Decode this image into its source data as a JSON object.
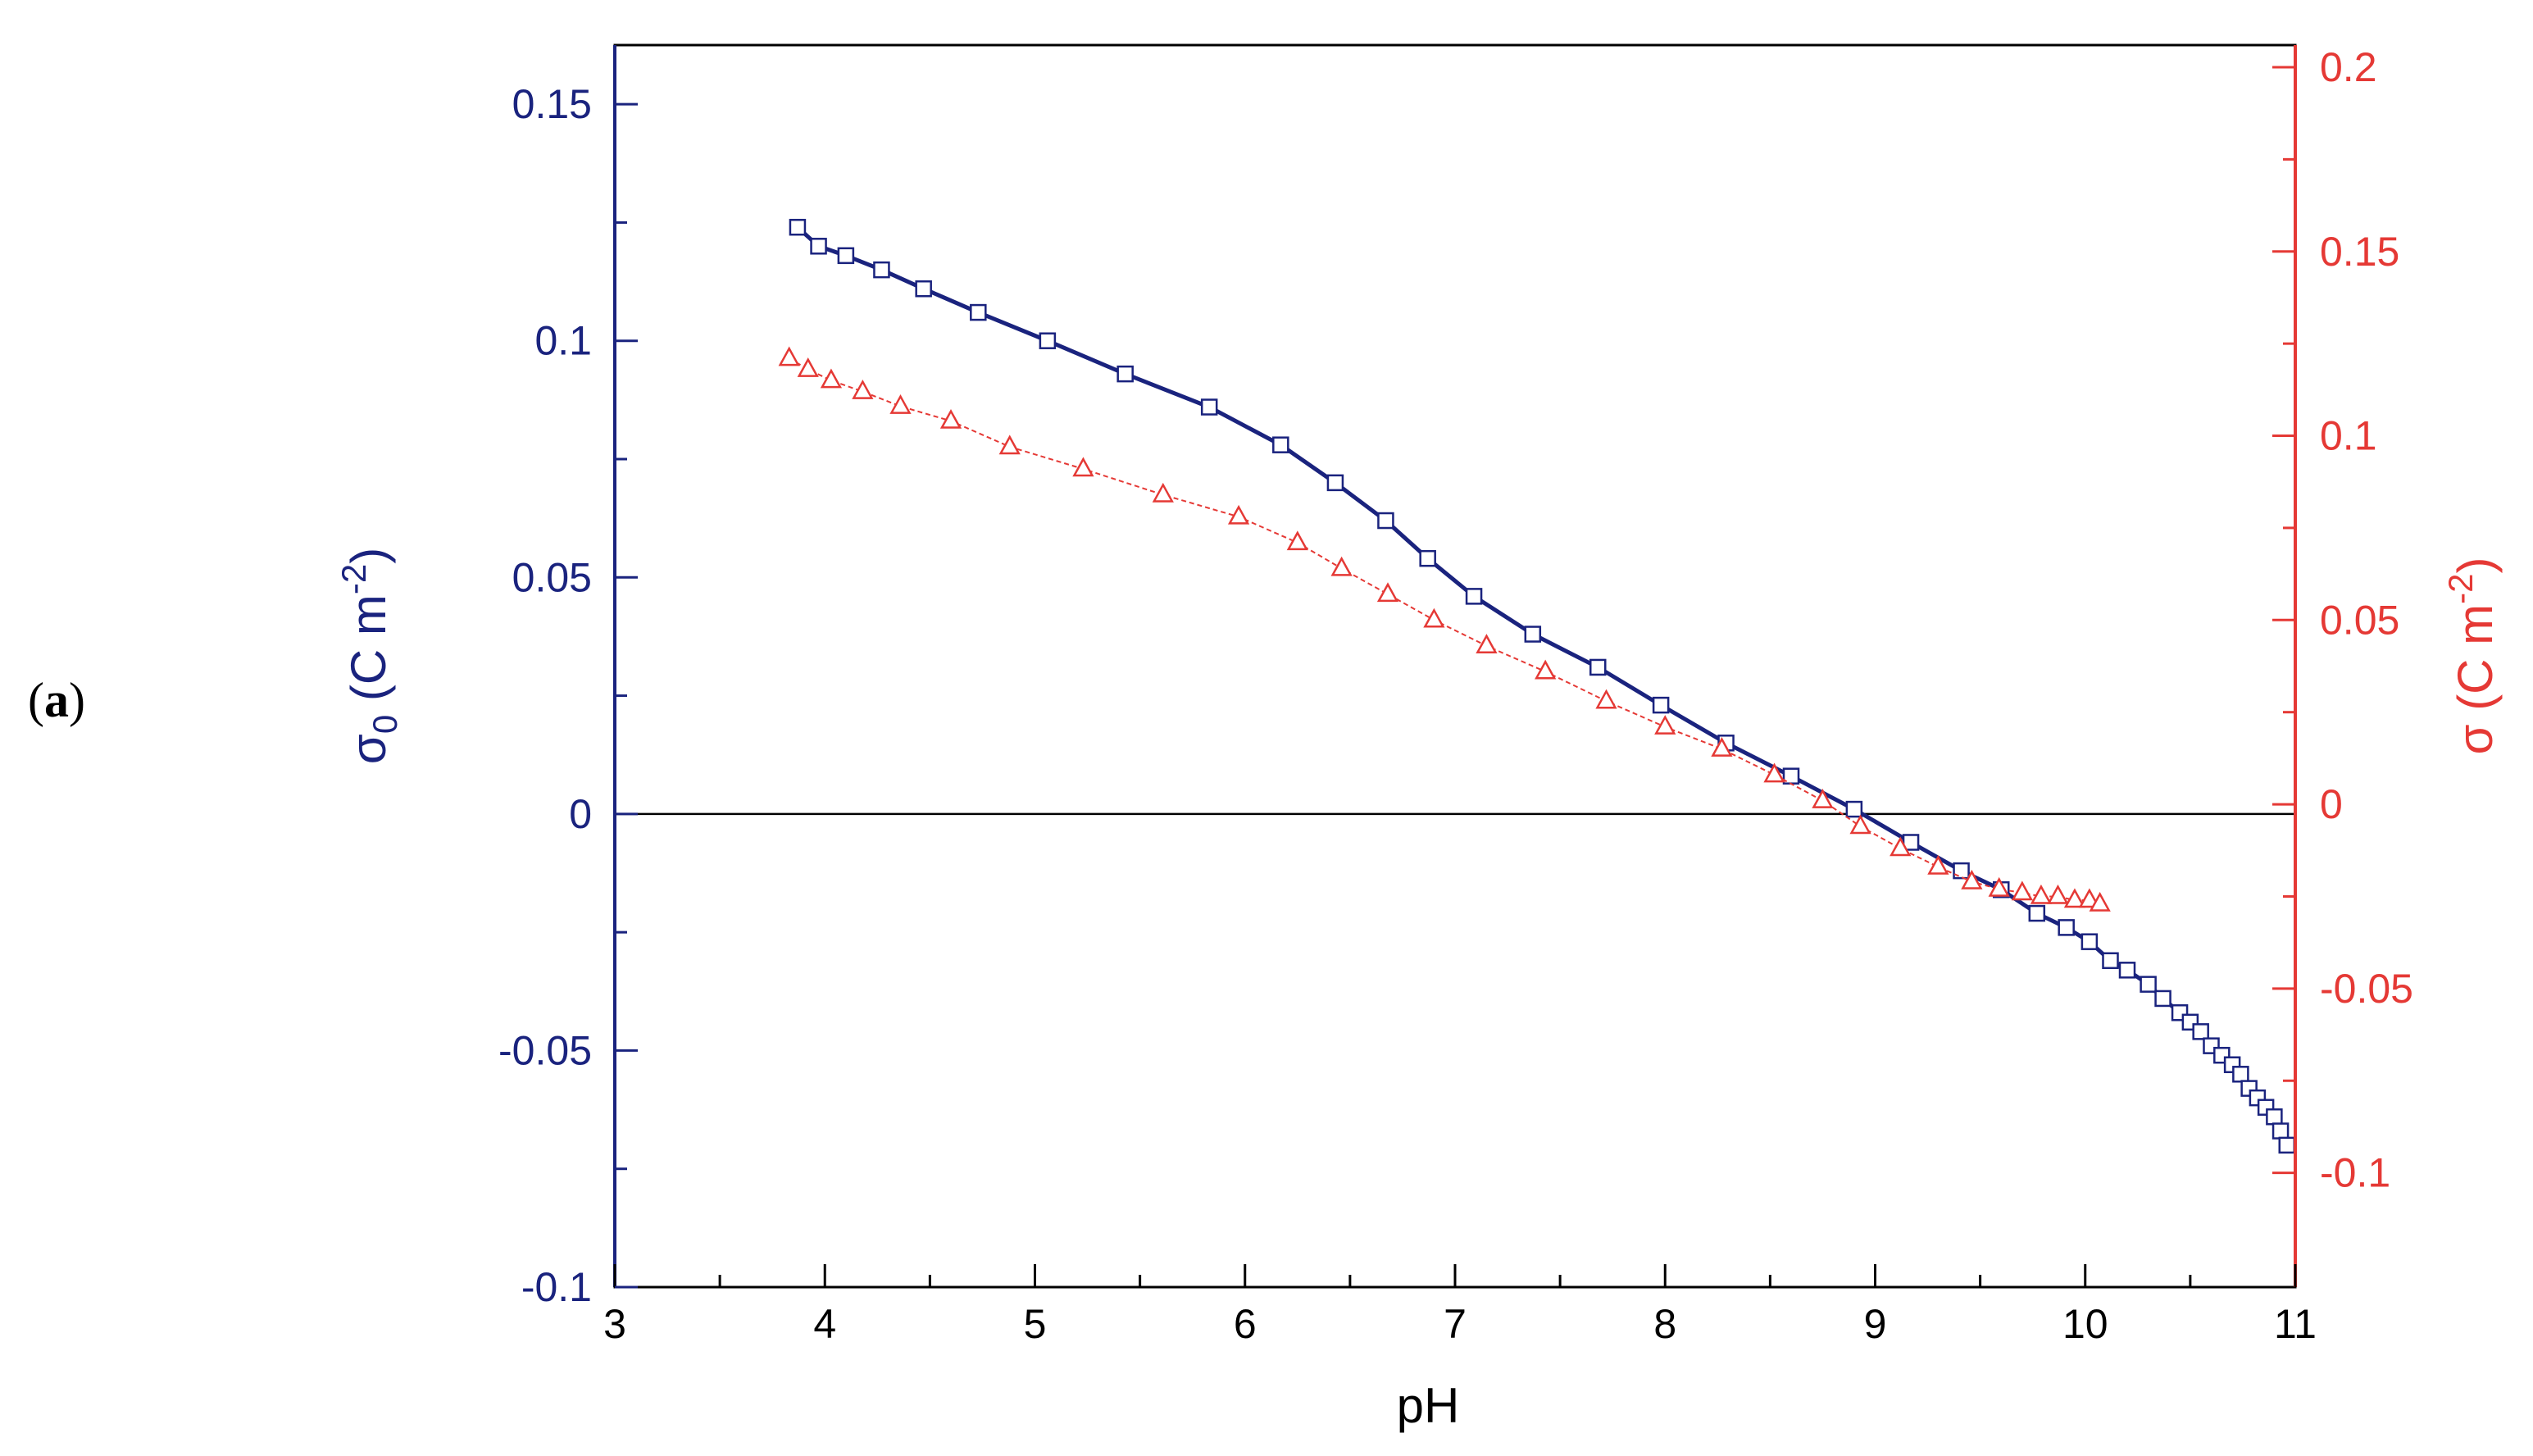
{
  "panel_label": {
    "open": "(",
    "letter": "a",
    "close": ")"
  },
  "colors": {
    "left_axis": "#1a237e",
    "right_axis": "#e53935",
    "frame": "#000000"
  },
  "chart_data": {
    "type": "scatter",
    "xlabel": "pH",
    "ylabel_left": {
      "symbol": "σ",
      "subscript": "0",
      "unit": " (C m",
      "exponent": "-2",
      "close": ")"
    },
    "ylabel_right": {
      "symbol": "σ",
      "unit": " (C m",
      "exponent": "-2",
      "close": ")"
    },
    "xlim": [
      3,
      11
    ],
    "ylim_left": [
      -0.1,
      0.1625
    ],
    "ylim_right": [
      -0.131,
      0.206
    ],
    "x_ticks": [
      {
        "value": 3,
        "label": "3"
      },
      {
        "value": 4,
        "label": "4"
      },
      {
        "value": 5,
        "label": "5"
      },
      {
        "value": 6,
        "label": "6"
      },
      {
        "value": 7,
        "label": "7"
      },
      {
        "value": 8,
        "label": "8"
      },
      {
        "value": 9,
        "label": "9"
      },
      {
        "value": 10,
        "label": "10"
      },
      {
        "value": 11,
        "label": "11"
      }
    ],
    "y_ticks_left": [
      {
        "value": -0.1,
        "label": "-0.1"
      },
      {
        "value": -0.05,
        "label": "-0.05"
      },
      {
        "value": 0,
        "label": "0"
      },
      {
        "value": 0.05,
        "label": "0.05"
      },
      {
        "value": 0.1,
        "label": "0.1"
      },
      {
        "value": 0.15,
        "label": "0.15"
      }
    ],
    "y_ticks_right": [
      {
        "value": -0.1,
        "label": "-0.1"
      },
      {
        "value": -0.05,
        "label": "-0.05"
      },
      {
        "value": 0,
        "label": "0"
      },
      {
        "value": 0.05,
        "label": "0.05"
      },
      {
        "value": 0.1,
        "label": "0.1"
      },
      {
        "value": 0.15,
        "label": "0.15"
      },
      {
        "value": 0.2,
        "label": "0.2"
      }
    ],
    "zero_line": 0,
    "series": [
      {
        "axis": "left",
        "marker": "square",
        "color": "#1a237e",
        "x": [
          3.87,
          3.97,
          4.1,
          4.27,
          4.47,
          4.73,
          5.06,
          5.43,
          5.83,
          6.17,
          6.43,
          6.67,
          6.87,
          7.09,
          7.37,
          7.68,
          7.98,
          8.29,
          8.6,
          8.9,
          9.17,
          9.41,
          9.6,
          9.77,
          9.91,
          10.02,
          10.12,
          10.2,
          10.3,
          10.37,
          10.45,
          10.5,
          10.55,
          10.6,
          10.65,
          10.7,
          10.74,
          10.78,
          10.82,
          10.86,
          10.9,
          10.93,
          10.96
        ],
        "y": [
          0.124,
          0.12,
          0.118,
          0.115,
          0.111,
          0.106,
          0.1,
          0.093,
          0.086,
          0.078,
          0.07,
          0.062,
          0.054,
          0.046,
          0.038,
          0.031,
          0.023,
          0.015,
          0.008,
          0.001,
          -0.006,
          -0.012,
          -0.016,
          -0.021,
          -0.024,
          -0.027,
          -0.031,
          -0.033,
          -0.036,
          -0.039,
          -0.042,
          -0.044,
          -0.046,
          -0.049,
          -0.051,
          -0.053,
          -0.055,
          -0.058,
          -0.06,
          -0.062,
          -0.064,
          -0.067,
          -0.07
        ]
      },
      {
        "axis": "right",
        "marker": "triangle",
        "color": "#e53935",
        "x": [
          3.83,
          3.92,
          4.03,
          4.18,
          4.36,
          4.6,
          4.88,
          5.23,
          5.61,
          5.97,
          6.25,
          6.46,
          6.68,
          6.9,
          7.15,
          7.43,
          7.72,
          8.0,
          8.27,
          8.52,
          8.75,
          8.93,
          9.12,
          9.3,
          9.46,
          9.59,
          9.7,
          9.79,
          9.87,
          9.95,
          10.02,
          10.07
        ],
        "y": [
          0.121,
          0.118,
          0.115,
          0.112,
          0.108,
          0.104,
          0.097,
          0.091,
          0.084,
          0.078,
          0.071,
          0.064,
          0.057,
          0.05,
          0.043,
          0.036,
          0.028,
          0.021,
          0.015,
          0.008,
          0.001,
          -0.006,
          -0.012,
          -0.017,
          -0.021,
          -0.023,
          -0.024,
          -0.025,
          -0.025,
          -0.026,
          -0.026,
          -0.027
        ]
      }
    ]
  }
}
